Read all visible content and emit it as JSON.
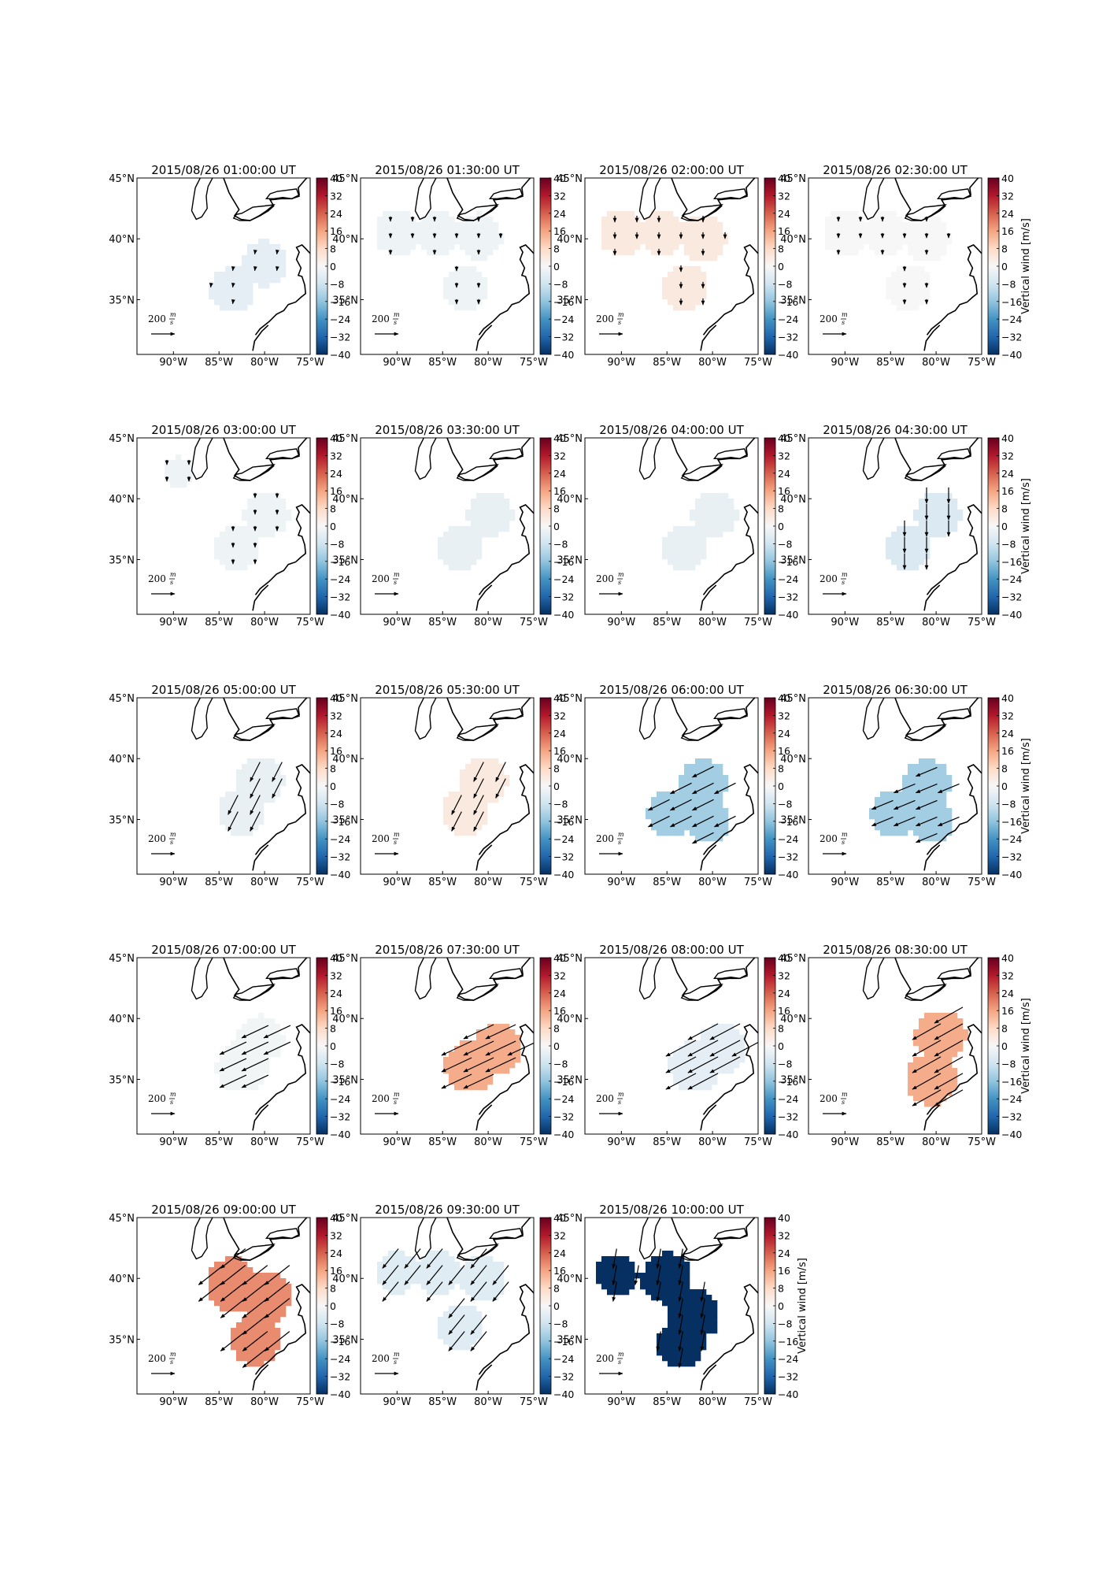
{
  "figure": {
    "colorbar_label": "Vertical wind [m/s]",
    "colorbar_ticks": [
      "40",
      "32",
      "24",
      "16",
      "8",
      "0",
      "−8",
      "−16",
      "−24",
      "−32",
      "−40"
    ],
    "colorbar_range": [
      -40,
      40
    ],
    "colormap": [
      "#053061",
      "#2166ac",
      "#4393c3",
      "#92c5de",
      "#d1e5f0",
      "#f7f7f7",
      "#fddbc7",
      "#f4a582",
      "#d6604d",
      "#b2182b",
      "#67001f"
    ],
    "lon_ticks": [
      "90°W",
      "85°W",
      "80°W",
      "75°W"
    ],
    "lat_ticks": [
      "45°N",
      "40°N",
      "35°N"
    ],
    "scale_label": "200",
    "scale_unit_num": "m",
    "scale_unit_den": "s",
    "map_extent": {
      "lon": [
        -94,
        -75
      ],
      "lat": [
        30.5,
        45
      ]
    },
    "panels": [
      {
        "title": "2015/08/26 01:00:00 UT",
        "value": -4,
        "wind": [
          -2,
          -12
        ],
        "blobs": [
          {
            "lon": -83.5,
            "lat": 35.8,
            "r": 2.5
          },
          {
            "lon": -80,
            "lat": 38,
            "r": 2.5
          }
        ]
      },
      {
        "title": "2015/08/26 01:30:00 UT",
        "value": -2,
        "wind": [
          0,
          -14
        ],
        "blobs": [
          {
            "lon": -90,
            "lat": 40.5,
            "r": 2.5
          },
          {
            "lon": -85.5,
            "lat": 40.5,
            "r": 2.5
          },
          {
            "lon": -81,
            "lat": 40.2,
            "r": 2.5
          },
          {
            "lon": -82.5,
            "lat": 36,
            "r": 2.5
          }
        ]
      },
      {
        "title": "2015/08/26 02:00:00 UT",
        "value": 4,
        "wind": [
          0,
          -18
        ],
        "blobs": [
          {
            "lon": -90,
            "lat": 40.5,
            "r": 2.5
          },
          {
            "lon": -85.5,
            "lat": 40.5,
            "r": 2.5
          },
          {
            "lon": -81,
            "lat": 40,
            "r": 2.5
          },
          {
            "lon": -83,
            "lat": 36,
            "r": 2.5
          }
        ]
      },
      {
        "title": "2015/08/26 02:30:00 UT",
        "value": 0,
        "wind": [
          0,
          -14
        ],
        "blobs": [
          {
            "lon": -90,
            "lat": 40.5,
            "r": 2.5
          },
          {
            "lon": -85.5,
            "lat": 40.5,
            "r": 2.5
          },
          {
            "lon": -81,
            "lat": 40,
            "r": 2.5
          },
          {
            "lon": -83,
            "lat": 36,
            "r": 2.5
          }
        ]
      },
      {
        "title": "2015/08/26 03:00:00 UT",
        "value": -2,
        "wind": [
          0,
          -14
        ],
        "blobs": [
          {
            "lon": -89.5,
            "lat": 42.2,
            "r": 1.7
          },
          {
            "lon": -83,
            "lat": 36,
            "r": 2.5
          },
          {
            "lon": -79.8,
            "lat": 38.8,
            "r": 2.5
          }
        ]
      },
      {
        "title": "2015/08/26 03:30:00 UT",
        "value": -3,
        "wind": [
          0,
          0
        ],
        "blobs": [
          {
            "lon": -83,
            "lat": 36,
            "r": 2.5
          },
          {
            "lon": -79.8,
            "lat": 38.8,
            "r": 2.5
          }
        ]
      },
      {
        "title": "2015/08/26 04:00:00 UT",
        "value": -3,
        "wind": [
          0,
          0
        ],
        "blobs": [
          {
            "lon": -83,
            "lat": 36,
            "r": 2.5
          },
          {
            "lon": -79.8,
            "lat": 38.8,
            "r": 2.5
          }
        ]
      },
      {
        "title": "2015/08/26 04:30:00 UT",
        "value": -6,
        "wind": [
          0,
          -45
        ],
        "blobs": [
          {
            "lon": -83,
            "lat": 36,
            "r": 2.5
          },
          {
            "lon": -79.8,
            "lat": 38.8,
            "r": 2.5
          }
        ]
      },
      {
        "title": "2015/08/26 05:00:00 UT",
        "value": -3,
        "wind": [
          -28,
          -55
        ],
        "blobs": [
          {
            "lon": -82.5,
            "lat": 35.5,
            "r": 2.6
          },
          {
            "lon": -80.5,
            "lat": 38.2,
            "r": 2.6
          }
        ]
      },
      {
        "title": "2015/08/26 05:30:00 UT",
        "value": 4,
        "wind": [
          -28,
          -55
        ],
        "blobs": [
          {
            "lon": -82.5,
            "lat": 35.5,
            "r": 2.6
          },
          {
            "lon": -80.5,
            "lat": 38.2,
            "r": 2.6
          }
        ]
      },
      {
        "title": "2015/08/26 06:00:00 UT",
        "value": -14,
        "wind": [
          -60,
          -30
        ],
        "blobs": [
          {
            "lon": -84.5,
            "lat": 35.5,
            "r": 2.6
          },
          {
            "lon": -81,
            "lat": 38,
            "r": 2.6
          },
          {
            "lon": -80.5,
            "lat": 34.8,
            "r": 2.4
          }
        ]
      },
      {
        "title": "2015/08/26 06:30:00 UT",
        "value": -14,
        "wind": [
          -60,
          -25
        ],
        "blobs": [
          {
            "lon": -84.5,
            "lat": 35.5,
            "r": 2.6
          },
          {
            "lon": -81,
            "lat": 38,
            "r": 2.6
          },
          {
            "lon": -80.5,
            "lat": 34.8,
            "r": 2.4
          }
        ]
      },
      {
        "title": "2015/08/26 07:00:00 UT",
        "value": -1,
        "wind": [
          -75,
          -35
        ],
        "blobs": [
          {
            "lon": -82.5,
            "lat": 36,
            "r": 2.8
          },
          {
            "lon": -80.5,
            "lat": 38.3,
            "r": 2.6
          }
        ]
      },
      {
        "title": "2015/08/26 07:30:00 UT",
        "value": 15,
        "wind": [
          -85,
          -40
        ],
        "blobs": [
          {
            "lon": -82,
            "lat": 36,
            "r": 2.8
          },
          {
            "lon": -79,
            "lat": 37.5,
            "r": 2.8
          }
        ]
      },
      {
        "title": "2015/08/26 08:00:00 UT",
        "value": -4,
        "wind": [
          -85,
          -45
        ],
        "blobs": [
          {
            "lon": -82,
            "lat": 36,
            "r": 2.8
          },
          {
            "lon": -79,
            "lat": 37.5,
            "r": 2.8
          }
        ]
      },
      {
        "title": "2015/08/26 08:30:00 UT",
        "value": 15,
        "wind": [
          -80,
          -45
        ],
        "blobs": [
          {
            "lon": -80.5,
            "lat": 35,
            "r": 2.8
          },
          {
            "lon": -79.5,
            "lat": 38.5,
            "r": 2.8
          }
        ]
      },
      {
        "title": "2015/08/26 09:00:00 UT",
        "value": 19,
        "wind": [
          -70,
          -55
        ],
        "blobs": [
          {
            "lon": -83.5,
            "lat": 39.5,
            "r": 2.9
          },
          {
            "lon": -80,
            "lat": 38.5,
            "r": 2.9
          },
          {
            "lon": -81,
            "lat": 35,
            "r": 2.8
          }
        ]
      },
      {
        "title": "2015/08/26 09:30:00 UT",
        "value": -5,
        "wind": [
          -45,
          -55
        ],
        "blobs": [
          {
            "lon": -90,
            "lat": 40.5,
            "r": 2.3
          },
          {
            "lon": -85.5,
            "lat": 40.5,
            "r": 2.5
          },
          {
            "lon": -80.5,
            "lat": 40,
            "r": 2.5
          },
          {
            "lon": -83,
            "lat": 36,
            "r": 2.5
          }
        ]
      },
      {
        "title": "2015/08/26 10:00:00 UT",
        "value": -40,
        "wind": [
          -10,
          -55
        ],
        "blobs": [
          {
            "lon": -90.5,
            "lat": 40.3,
            "r": 2.3
          },
          {
            "lon": -85,
            "lat": 40,
            "r": 2.8
          },
          {
            "lon": -82,
            "lat": 37,
            "r": 2.8
          },
          {
            "lon": -83.5,
            "lat": 34.5,
            "r": 2.6
          }
        ]
      }
    ]
  }
}
